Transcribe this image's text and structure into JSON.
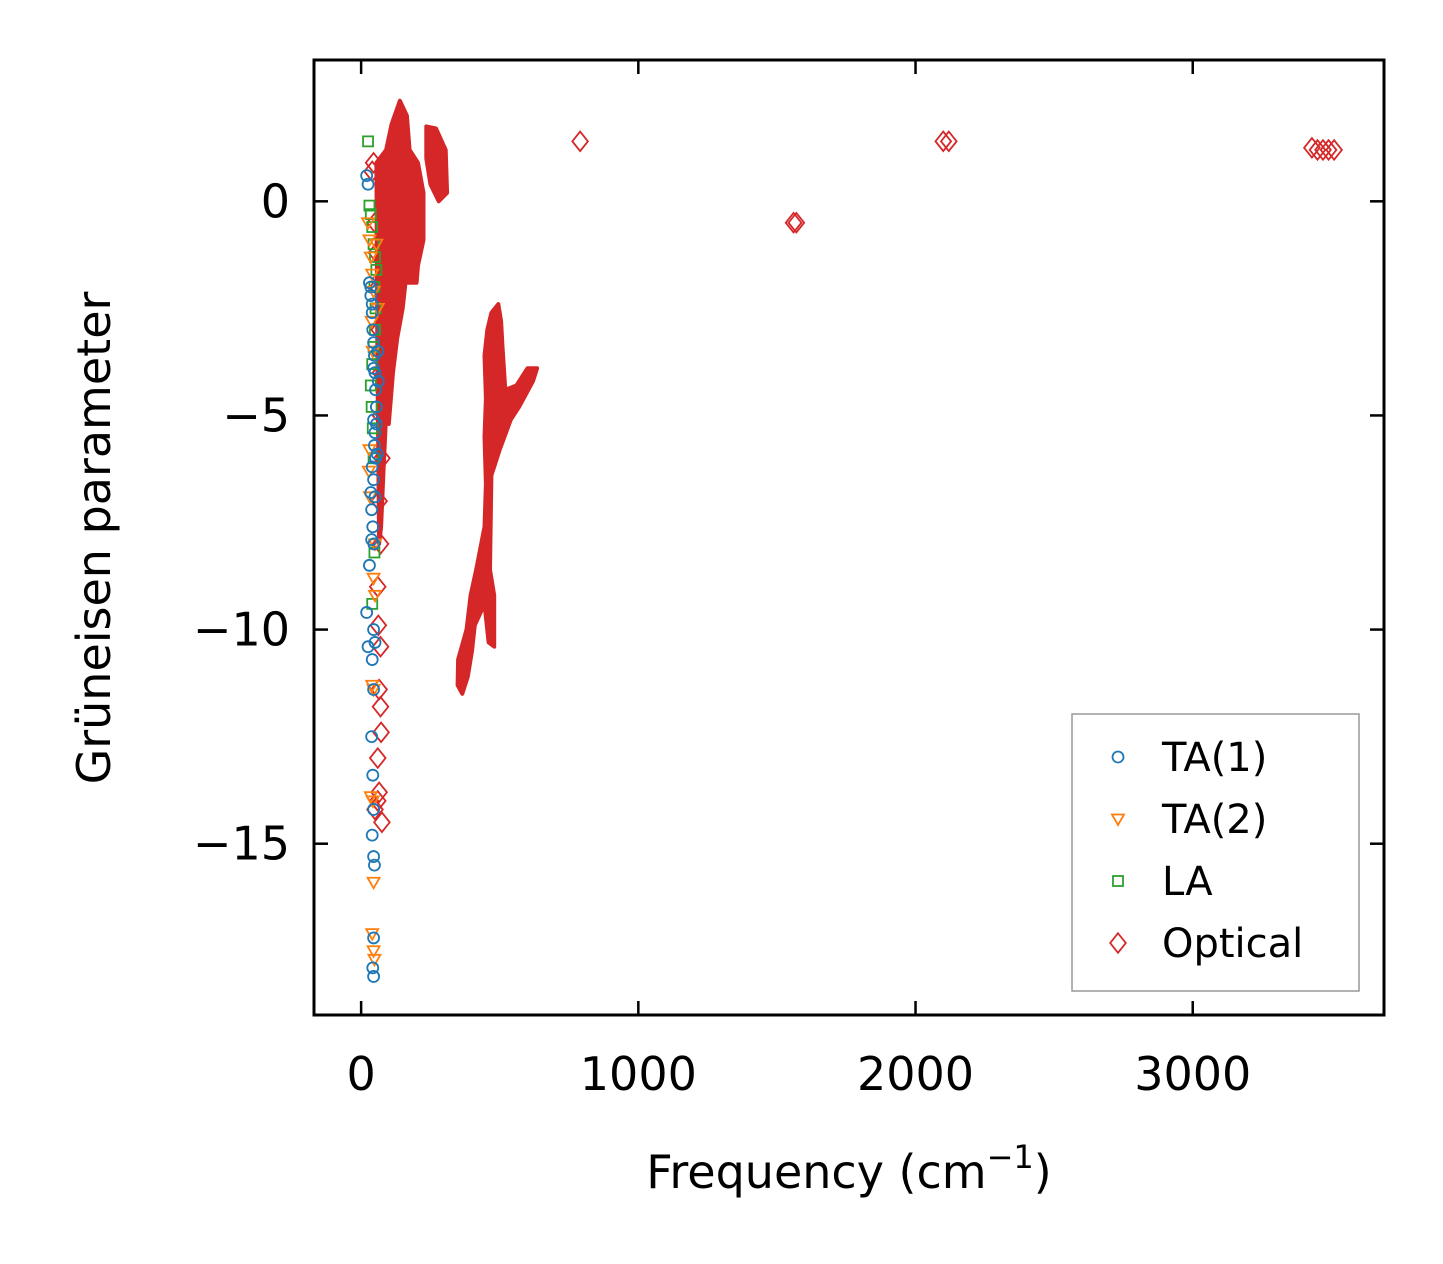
{
  "chart_data": {
    "type": "scatter",
    "title": "",
    "xlabel": "Frequency (cm",
    "xlabel_sup": "−1",
    "xlabel_suffix": ")",
    "ylabel": "Grüneisen parameter",
    "xlim": [
      -170,
      3690
    ],
    "ylim": [
      -19,
      3.3
    ],
    "xticks": [
      0,
      1000,
      2000,
      3000
    ],
    "xtick_labels": [
      "0",
      "1000",
      "2000",
      "3000"
    ],
    "yticks": [
      0,
      -5,
      -10,
      -15
    ],
    "ytick_labels": [
      "0",
      "−5",
      "−10",
      "−15"
    ],
    "legend_position": "lower right",
    "series": [
      {
        "name": "TA(1)",
        "color": "#1f77b4",
        "marker": "circle",
        "points": [
          [
            20,
            0.6
          ],
          [
            25,
            0.4
          ],
          [
            30,
            -1.9
          ],
          [
            35,
            -2.2
          ],
          [
            40,
            -2.6
          ],
          [
            42,
            -3.0
          ],
          [
            45,
            -3.3
          ],
          [
            48,
            -3.6
          ],
          [
            50,
            -4.0
          ],
          [
            52,
            -4.4
          ],
          [
            55,
            -4.8
          ],
          [
            45,
            -5.1
          ],
          [
            50,
            -5.4
          ],
          [
            48,
            -5.7
          ],
          [
            52,
            -6.0
          ],
          [
            40,
            -6.2
          ],
          [
            45,
            -6.5
          ],
          [
            50,
            -6.9
          ],
          [
            38,
            -7.2
          ],
          [
            42,
            -7.6
          ],
          [
            46,
            -8.0
          ],
          [
            30,
            -8.5
          ],
          [
            20,
            -9.6
          ],
          [
            45,
            -10.0
          ],
          [
            50,
            -10.3
          ],
          [
            25,
            -10.4
          ],
          [
            40,
            -10.7
          ],
          [
            45,
            -11.4
          ],
          [
            38,
            -12.5
          ],
          [
            42,
            -13.4
          ],
          [
            45,
            -14.2
          ],
          [
            40,
            -14.8
          ],
          [
            45,
            -15.3
          ],
          [
            48,
            -15.5
          ],
          [
            45,
            -17.2
          ],
          [
            42,
            -17.9
          ],
          [
            45,
            -18.1
          ],
          [
            35,
            -2.0
          ],
          [
            40,
            -2.4
          ],
          [
            45,
            -3.9
          ],
          [
            55,
            -5.2
          ],
          [
            58,
            -5.9
          ],
          [
            35,
            -6.8
          ],
          [
            38,
            -7.9
          ],
          [
            60,
            -3.5
          ],
          [
            62,
            -4.2
          ]
        ]
      },
      {
        "name": "TA(2)",
        "color": "#ff7f0e",
        "marker": "triangle-down",
        "points": [
          [
            25,
            -0.5
          ],
          [
            30,
            -0.9
          ],
          [
            35,
            -1.3
          ],
          [
            40,
            -1.7
          ],
          [
            45,
            -2.1
          ],
          [
            38,
            -2.8
          ],
          [
            42,
            -3.5
          ],
          [
            30,
            -5.8
          ],
          [
            28,
            -6.3
          ],
          [
            32,
            -6.9
          ],
          [
            50,
            -8.0
          ],
          [
            45,
            -8.8
          ],
          [
            50,
            -9.2
          ],
          [
            40,
            -11.3
          ],
          [
            45,
            -11.4
          ],
          [
            35,
            -13.9
          ],
          [
            42,
            -14.0
          ],
          [
            45,
            -15.9
          ],
          [
            40,
            -17.1
          ],
          [
            45,
            -17.5
          ],
          [
            48,
            -17.7
          ],
          [
            55,
            -1.0
          ],
          [
            60,
            -2.5
          ]
        ]
      },
      {
        "name": "LA",
        "color": "#2ca02c",
        "marker": "square",
        "points": [
          [
            25,
            1.4
          ],
          [
            30,
            -0.1
          ],
          [
            35,
            -0.3
          ],
          [
            40,
            -0.6
          ],
          [
            45,
            -1.0
          ],
          [
            50,
            -1.3
          ],
          [
            55,
            -1.6
          ],
          [
            48,
            -2.0
          ],
          [
            52,
            -2.5
          ],
          [
            50,
            -3.0
          ],
          [
            45,
            -3.4
          ],
          [
            40,
            -3.8
          ],
          [
            35,
            -4.3
          ],
          [
            38,
            -4.8
          ],
          [
            42,
            -5.3
          ],
          [
            45,
            -6.0
          ],
          [
            48,
            -8.2
          ],
          [
            40,
            -9.4
          ]
        ]
      },
      {
        "name": "Optical",
        "color": "#d62728",
        "marker": "diamond",
        "points": [
          [
            50,
            -0.5
          ],
          [
            55,
            -1.2
          ],
          [
            60,
            -2.0
          ],
          [
            65,
            -3.0
          ],
          [
            70,
            -4.0
          ],
          [
            70,
            -5.0
          ],
          [
            75,
            -6.0
          ],
          [
            65,
            -7.0
          ],
          [
            70,
            -8.0
          ],
          [
            60,
            -9.0
          ],
          [
            62,
            -9.9
          ],
          [
            70,
            -10.4
          ],
          [
            65,
            -11.4
          ],
          [
            70,
            -11.8
          ],
          [
            72,
            -12.4
          ],
          [
            60,
            -13.0
          ],
          [
            65,
            -13.8
          ],
          [
            75,
            -14.5
          ],
          [
            50,
            -14.2
          ],
          [
            60,
            -14.0
          ],
          [
            40,
            0.7
          ],
          [
            45,
            0.9
          ],
          [
            790,
            1.4
          ],
          [
            1560,
            -0.5
          ],
          [
            1570,
            -0.5
          ],
          [
            2100,
            1.4
          ],
          [
            2120,
            1.4
          ],
          [
            3430,
            1.25
          ],
          [
            3450,
            1.2
          ],
          [
            3470,
            1.2
          ],
          [
            3490,
            1.2
          ],
          [
            3510,
            1.2
          ]
        ]
      }
    ]
  }
}
